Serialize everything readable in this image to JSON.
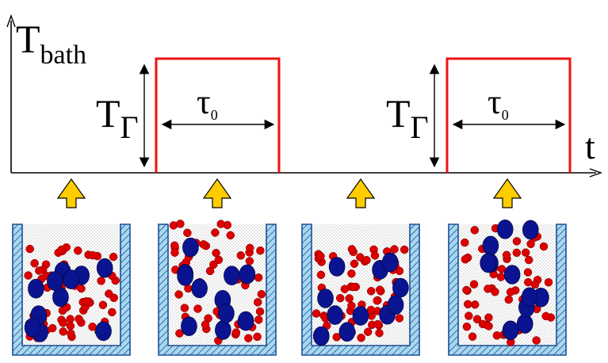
{
  "axis": {
    "y_label_main": "T",
    "y_label_sub": "bath",
    "x_label": "t"
  },
  "pulses": [
    {
      "amplitude_label_main": "T",
      "amplitude_label_sub": "Γ",
      "width_label_main": "τ",
      "width_label_sub": "0"
    },
    {
      "amplitude_label_main": "T",
      "amplitude_label_sub": "Γ",
      "width_label_main": "τ",
      "width_label_sub": "0"
    }
  ],
  "containers": [
    {
      "state": "mixed"
    },
    {
      "state": "segregating"
    },
    {
      "state": "mixed"
    },
    {
      "state": "segregating"
    }
  ],
  "colors": {
    "pulse": "#ee1111",
    "axis": "#000000",
    "arrow_fill": "#ffcc00",
    "arrow_stroke": "#000000",
    "wall_fill": "#a8d8ee",
    "wall_stroke": "#1a4f9a",
    "large_particle": "#0a1490",
    "small_particle": "#dd0000"
  }
}
